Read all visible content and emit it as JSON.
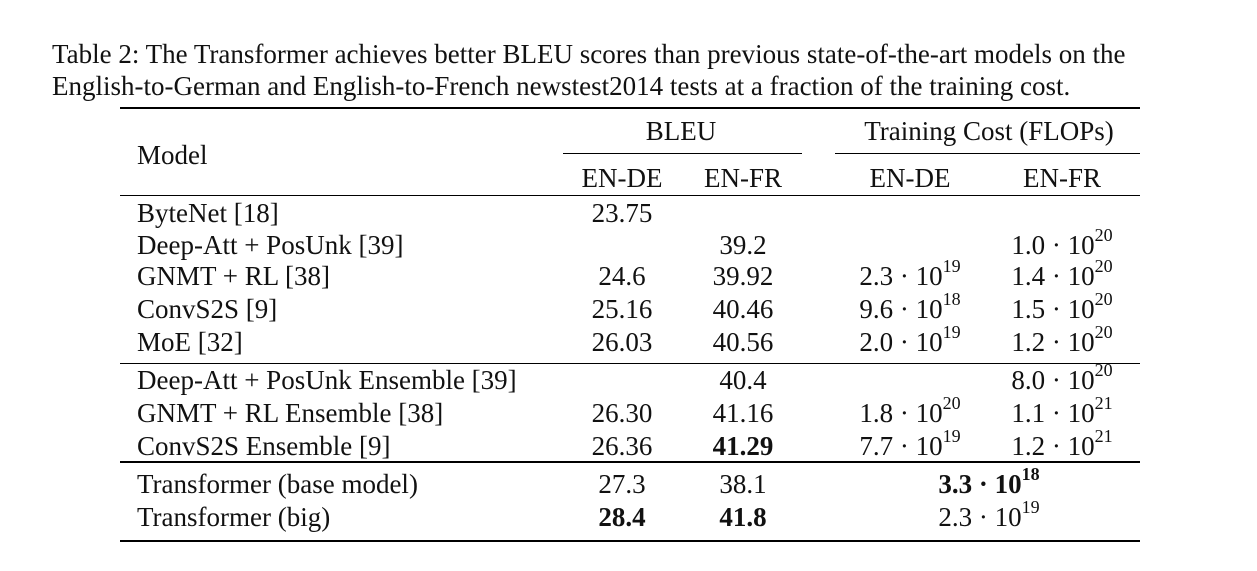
{
  "caption": {
    "line1": "Table 2: The Transformer achieves better BLEU scores than previous state-of-the-art models on the",
    "line2": "English-to-German and English-to-French newstest2014 tests at a fraction of the training cost."
  },
  "header": {
    "model": "Model",
    "bleu": "BLEU",
    "cost": "Training Cost (FLOPs)",
    "ende_bleu": "EN-DE",
    "enfr_bleu": "EN-FR",
    "ende_cost": "EN-DE",
    "enfr_cost": "EN-FR"
  },
  "dot": "·",
  "rows": [
    {
      "model": "ByteNet [18]",
      "ende": "23.75",
      "enfr": "",
      "cde": null,
      "cfr": null
    },
    {
      "model": "Deep-Att + PosUnk [39]",
      "ende": "",
      "enfr": "39.2",
      "cde": null,
      "cfr": {
        "m": "1.0",
        "b": "10",
        "e": "20"
      }
    },
    {
      "model": "GNMT + RL [38]",
      "ende": "24.6",
      "enfr": "39.92",
      "cde": {
        "m": "2.3",
        "b": "10",
        "e": "19"
      },
      "cfr": {
        "m": "1.4",
        "b": "10",
        "e": "20"
      }
    },
    {
      "model": "ConvS2S [9]",
      "ende": "25.16",
      "enfr": "40.46",
      "cde": {
        "m": "9.6",
        "b": "10",
        "e": "18"
      },
      "cfr": {
        "m": "1.5",
        "b": "10",
        "e": "20"
      }
    },
    {
      "model": "MoE [32]",
      "ende": "26.03",
      "enfr": "40.56",
      "cde": {
        "m": "2.0",
        "b": "10",
        "e": "19"
      },
      "cfr": {
        "m": "1.2",
        "b": "10",
        "e": "20"
      }
    },
    {
      "model": "Deep-Att + PosUnk Ensemble [39]",
      "ende": "",
      "enfr": "40.4",
      "cde": null,
      "cfr": {
        "m": "8.0",
        "b": "10",
        "e": "20"
      }
    },
    {
      "model": "GNMT + RL Ensemble [38]",
      "ende": "26.30",
      "enfr": "41.16",
      "cde": {
        "m": "1.8",
        "b": "10",
        "e": "20"
      },
      "cfr": {
        "m": "1.1",
        "b": "10",
        "e": "21"
      }
    },
    {
      "model": "ConvS2S Ensemble [9]",
      "ende": "26.36",
      "enfr": "41.29",
      "enfr_bold": true,
      "cde": {
        "m": "7.7",
        "b": "10",
        "e": "19"
      },
      "cfr": {
        "m": "1.2",
        "b": "10",
        "e": "21"
      }
    },
    {
      "model": "Transformer (base model)",
      "ende": "27.3",
      "enfr": "38.1",
      "cost": {
        "m": "3.3",
        "b": "10",
        "e": "18"
      },
      "cost_bold": true
    },
    {
      "model": "Transformer (big)",
      "ende": "28.4",
      "ende_bold": true,
      "enfr": "41.8",
      "enfr_bold": true,
      "cost": {
        "m": "2.3",
        "b": "10",
        "e": "19"
      }
    }
  ]
}
